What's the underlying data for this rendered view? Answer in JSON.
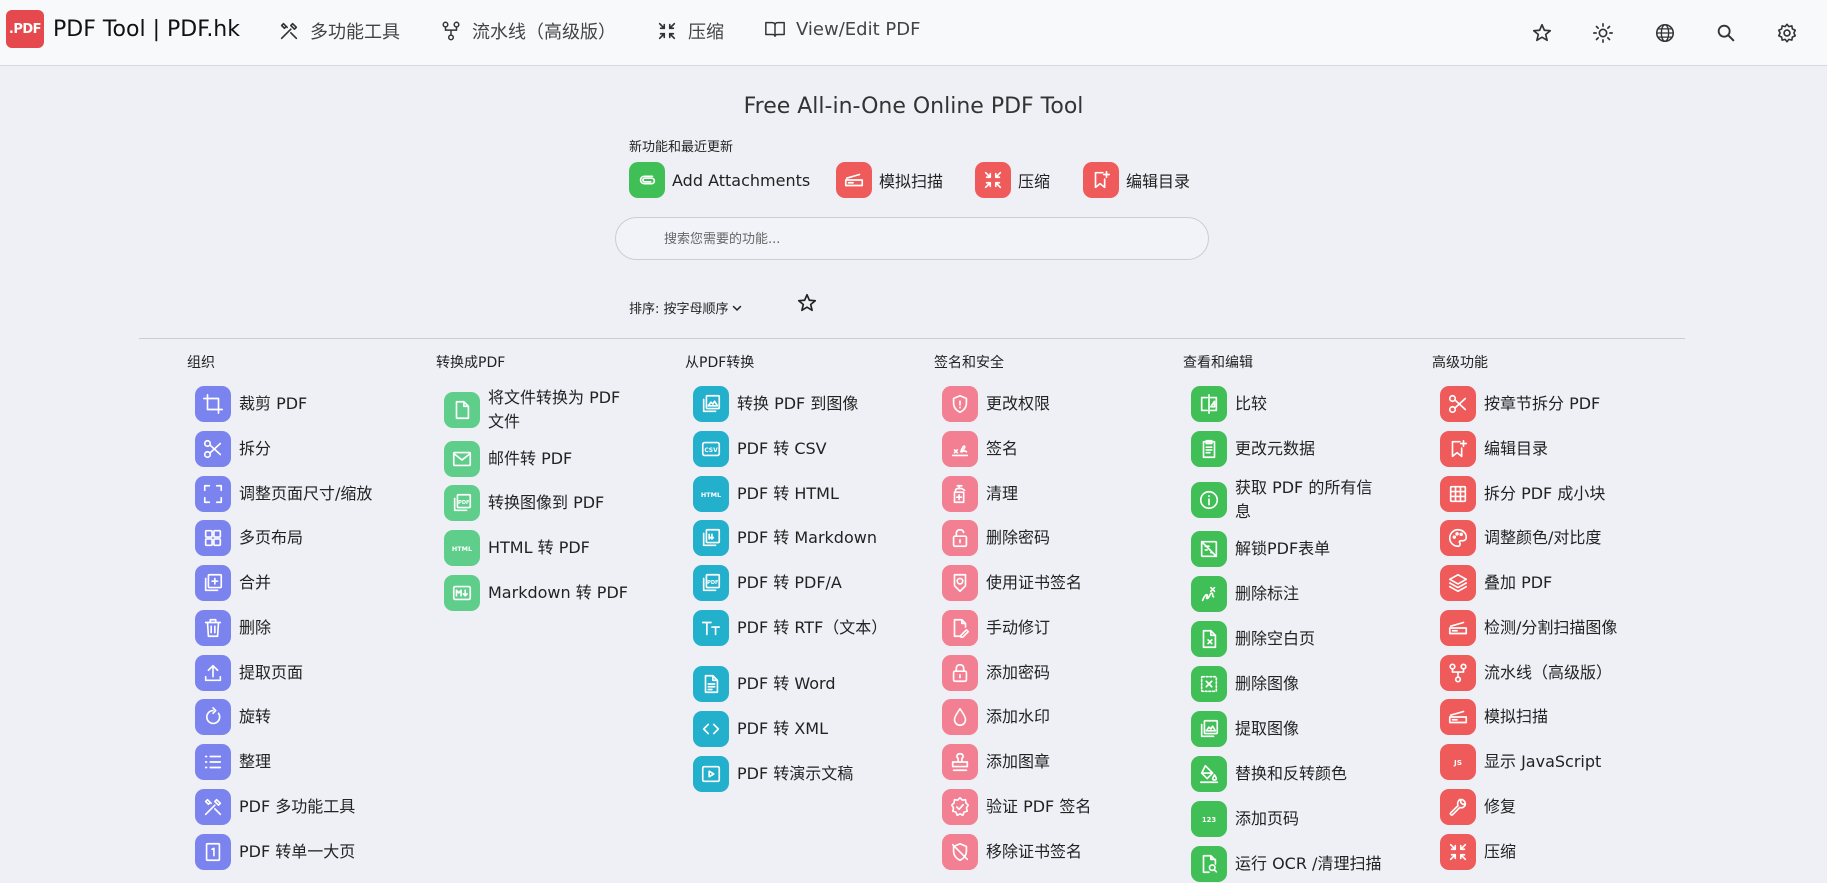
{
  "brand": {
    "logo_text": ".PDF",
    "title": "PDF Tool | PDF.hk"
  },
  "nav": {
    "items": [
      {
        "label": "多功能工具",
        "icon": "tools-icon"
      },
      {
        "label": "流水线（高级版）",
        "icon": "pipeline-icon"
      },
      {
        "label": "压缩",
        "icon": "compress-icon"
      },
      {
        "label": "View/Edit PDF",
        "icon": "book-icon"
      }
    ],
    "right_icons": [
      "star-icon",
      "sun-icon",
      "globe-icon",
      "search-icon",
      "gear-icon"
    ]
  },
  "hero": {
    "title": "Free All-in-One Online PDF Tool",
    "new_label": "新功能和最近更新",
    "featured": [
      {
        "label": "Add Attachments",
        "icon": "paperclip-icon",
        "color": "#3fbf55"
      },
      {
        "label": "模拟扫描",
        "icon": "scanner-icon",
        "color": "#ef5a5a"
      },
      {
        "label": "压缩",
        "icon": "compress-icon",
        "color": "#ef5a5a"
      },
      {
        "label": "编辑目录",
        "icon": "bookmark-icon",
        "color": "#ef5a5a"
      }
    ]
  },
  "search": {
    "placeholder": "搜索您需要的功能..."
  },
  "sort": {
    "label": "排序: 按字母顺序"
  },
  "columns": [
    {
      "heading": "组织",
      "color": "#7b83ee",
      "tools": [
        {
          "label": "裁剪 PDF",
          "icon": "crop-icon"
        },
        {
          "label": "拆分",
          "icon": "scissors-icon"
        },
        {
          "label": "调整页面尺寸/缩放",
          "icon": "resize-icon"
        },
        {
          "label": "多页布局",
          "icon": "grid-layout-icon"
        },
        {
          "label": "合并",
          "icon": "merge-icon"
        },
        {
          "label": "删除",
          "icon": "trash-icon"
        },
        {
          "label": "提取页面",
          "icon": "upload-icon"
        },
        {
          "label": "旋转",
          "icon": "rotate-icon"
        },
        {
          "label": "整理",
          "icon": "list-icon"
        },
        {
          "label": "PDF 多功能工具",
          "icon": "tools-icon"
        },
        {
          "label": "PDF 转单一大页",
          "icon": "single-page-icon"
        }
      ]
    },
    {
      "heading": "转换成PDF",
      "color": "#5fce8a",
      "tools": [
        {
          "label": "将文件转换为 PDF 文件",
          "icon": "file-icon"
        },
        {
          "label": "邮件转 PDF",
          "icon": "mail-icon"
        },
        {
          "label": "转换图像到 PDF",
          "icon": "image-pdf-icon"
        },
        {
          "label": "HTML 转 PDF",
          "icon": "html-icon"
        },
        {
          "label": "Markdown 转 PDF",
          "icon": "markdown-icon"
        }
      ]
    },
    {
      "heading": "从PDF转换",
      "color": "#23b0cc",
      "tools": [
        {
          "label": "转换 PDF 到图像",
          "icon": "image-icon"
        },
        {
          "label": "PDF 转 CSV",
          "icon": "csv-icon"
        },
        {
          "label": "PDF 转 HTML",
          "icon": "html-icon"
        },
        {
          "label": "PDF 转 Markdown",
          "icon": "markdown-file-icon"
        },
        {
          "label": "PDF 转 PDF/A",
          "icon": "pdfa-icon"
        },
        {
          "label": "PDF 转 RTF（文本）",
          "icon": "text-icon"
        },
        {
          "label": "PDF 转 Word",
          "icon": "word-icon"
        },
        {
          "label": "PDF 转 XML",
          "icon": "code-icon"
        },
        {
          "label": "PDF 转演示文稿",
          "icon": "slideshow-icon"
        }
      ]
    },
    {
      "heading": "签名和安全",
      "color": "#f27f92",
      "tools": [
        {
          "label": "更改权限",
          "icon": "shield-icon"
        },
        {
          "label": "签名",
          "icon": "signature-icon"
        },
        {
          "label": "清理",
          "icon": "sanitize-icon"
        },
        {
          "label": "删除密码",
          "icon": "unlock-icon"
        },
        {
          "label": "使用证书签名",
          "icon": "certificate-icon"
        },
        {
          "label": "手动修订",
          "icon": "redact-icon"
        },
        {
          "label": "添加密码",
          "icon": "lock-icon"
        },
        {
          "label": "添加水印",
          "icon": "water-drop-icon"
        },
        {
          "label": "添加图章",
          "icon": "stamp-icon"
        },
        {
          "label": "验证 PDF 签名",
          "icon": "verified-icon"
        },
        {
          "label": "移除证书签名",
          "icon": "remove-cert-icon"
        }
      ]
    },
    {
      "heading": "查看和编辑",
      "color": "#3fbf55",
      "tools": [
        {
          "label": "比较",
          "icon": "compare-icon"
        },
        {
          "label": "更改元数据",
          "icon": "metadata-icon"
        },
        {
          "label": "获取 PDF 的所有信息",
          "icon": "info-icon"
        },
        {
          "label": "解锁PDF表单",
          "icon": "unlock-form-icon"
        },
        {
          "label": "删除标注",
          "icon": "remove-annotation-icon"
        },
        {
          "label": "删除空白页",
          "icon": "blank-page-icon"
        },
        {
          "label": "删除图像",
          "icon": "remove-image-icon"
        },
        {
          "label": "提取图像",
          "icon": "extract-image-icon"
        },
        {
          "label": "替换和反转颜色",
          "icon": "paint-bucket-icon"
        },
        {
          "label": "添加页码",
          "icon": "page-number-icon"
        },
        {
          "label": "运行 OCR /清理扫描",
          "icon": "ocr-icon"
        }
      ]
    },
    {
      "heading": "高级功能",
      "color": "#ef5a5a",
      "tools": [
        {
          "label": "按章节拆分 PDF",
          "icon": "scissors-icon"
        },
        {
          "label": "编辑目录",
          "icon": "bookmark-icon"
        },
        {
          "label": "拆分 PDF 成小块",
          "icon": "grid-icon"
        },
        {
          "label": "调整颜色/对比度",
          "icon": "palette-icon"
        },
        {
          "label": "叠加 PDF",
          "icon": "layers-icon"
        },
        {
          "label": "检测/分割扫描图像",
          "icon": "scanner-icon"
        },
        {
          "label": "流水线（高级版）",
          "icon": "pipeline-icon"
        },
        {
          "label": "模拟扫描",
          "icon": "scanner-icon"
        },
        {
          "label": "显示 JavaScript",
          "icon": "javascript-icon"
        },
        {
          "label": "修复",
          "icon": "wrench-icon"
        },
        {
          "label": "压缩",
          "icon": "compress-icon"
        }
      ]
    }
  ]
}
